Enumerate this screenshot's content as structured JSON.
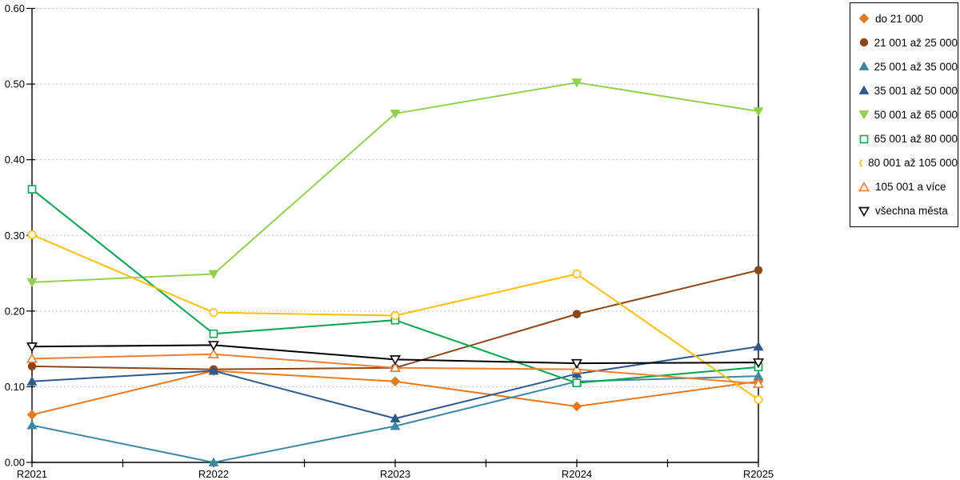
{
  "chart_data": {
    "type": "line",
    "title": "",
    "xlabel": "",
    "ylabel": "",
    "categories": [
      "R2021",
      "R2022",
      "R2023",
      "R2024",
      "R2025"
    ],
    "y_ticks": [
      "0.00",
      "0.10",
      "0.20",
      "0.30",
      "0.40",
      "0.50",
      "0.60"
    ],
    "ylim": [
      0,
      0.6
    ],
    "grid": "horizontal-dashed",
    "legend_position": "outside-top-right",
    "series": [
      {
        "name": "do 21 000",
        "color": "#E8791E",
        "marker": "diamond",
        "marker_fill": "filled",
        "values": [
          0.063,
          0.121,
          0.107,
          0.074,
          0.107
        ]
      },
      {
        "name": "21 001 až 25 000",
        "color": "#8C4617",
        "marker": "circle",
        "marker_fill": "filled",
        "values": [
          0.127,
          0.123,
          0.125,
          0.196,
          0.254
        ]
      },
      {
        "name": "25 001 až 35 000",
        "color": "#3D89A5",
        "marker": "triangle-up",
        "marker_fill": "filled",
        "values": [
          0.049,
          0.0,
          0.048,
          0.107,
          0.114
        ]
      },
      {
        "name": "35 001 až 50 000",
        "color": "#2E598C",
        "marker": "triangle-up",
        "marker_fill": "filled",
        "values": [
          0.107,
          0.121,
          0.058,
          0.117,
          0.153
        ]
      },
      {
        "name": "50 001 až 65 000",
        "color": "#92D050",
        "marker": "triangle-down",
        "marker_fill": "filled",
        "values": [
          0.238,
          0.249,
          0.461,
          0.502,
          0.464
        ]
      },
      {
        "name": "65 001 až 80 000",
        "color": "#00A550",
        "marker": "square",
        "marker_fill": "open",
        "values": [
          0.361,
          0.17,
          0.188,
          0.105,
          0.126
        ]
      },
      {
        "name": "80 001 až 105 000",
        "color": "#FFC000",
        "marker": "circle",
        "marker_fill": "open",
        "values": [
          0.301,
          0.198,
          0.194,
          0.249,
          0.083
        ]
      },
      {
        "name": "105 001 a více",
        "color": "#ED7D31",
        "marker": "triangle-up",
        "marker_fill": "open",
        "values": [
          0.137,
          0.143,
          0.125,
          0.123,
          0.104
        ]
      },
      {
        "name": "všechna města",
        "color": "#000000",
        "marker": "triangle-down",
        "marker_fill": "open",
        "values": [
          0.153,
          0.155,
          0.136,
          0.131,
          0.132
        ]
      }
    ],
    "colors": {
      "grid": "#BFBFBF",
      "axis": "#000000",
      "tick_label": "#000000",
      "background": "#FFFFFF"
    }
  }
}
